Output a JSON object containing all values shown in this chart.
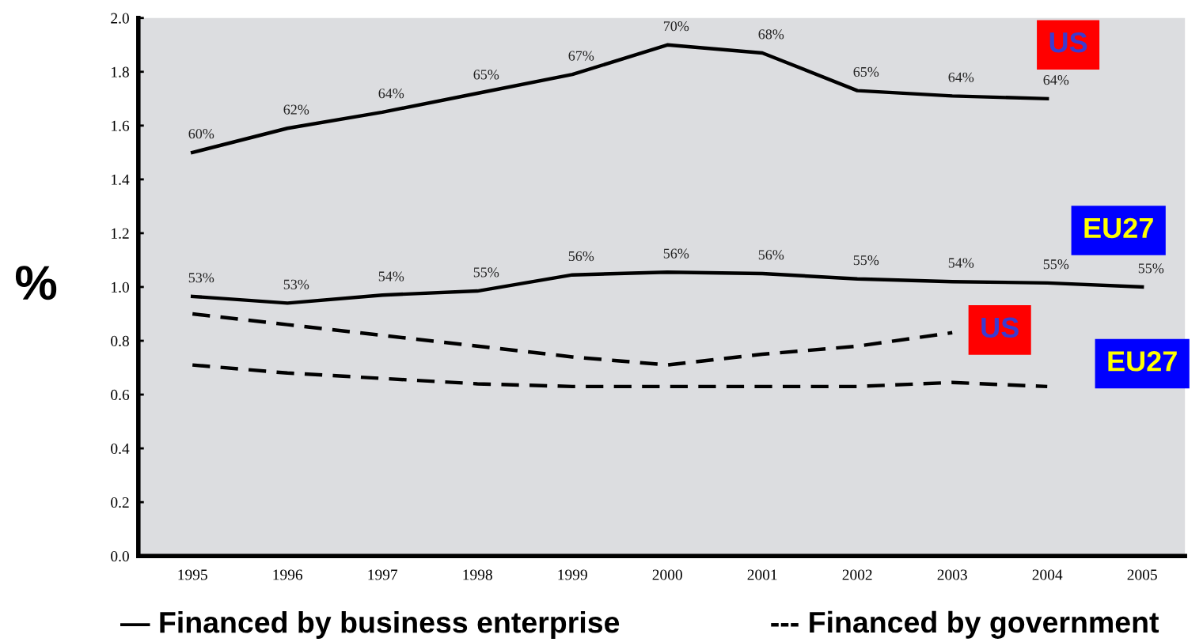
{
  "chart_data": {
    "type": "line",
    "ylabel": "%",
    "x": [
      1995,
      1996,
      1997,
      1998,
      1999,
      2000,
      2001,
      2002,
      2003,
      2004,
      2005
    ],
    "series": [
      {
        "name": "US",
        "color": "#000000",
        "line_style": "solid",
        "values": [
          1.5,
          1.59,
          1.65,
          1.72,
          1.79,
          1.9,
          1.87,
          1.73,
          1.71,
          1.7,
          null
        ]
      },
      {
        "name": "EU27",
        "color": "#000000",
        "line_style": "solid",
        "values": [
          0.965,
          0.94,
          0.97,
          0.985,
          1.045,
          1.055,
          1.05,
          1.03,
          1.02,
          1.015,
          1.0
        ]
      },
      {
        "name": "US",
        "color": "#000000",
        "line_style": "dashed",
        "values": [
          0.9,
          0.86,
          0.82,
          0.78,
          0.74,
          0.71,
          0.75,
          0.78,
          0.83,
          null,
          null
        ]
      },
      {
        "name": "EU27",
        "color": "#000000",
        "line_style": "dashed",
        "values": [
          0.71,
          0.68,
          0.66,
          0.64,
          0.63,
          0.63,
          0.63,
          0.63,
          0.645,
          0.63,
          null
        ]
      }
    ],
    "xlim": [
      1994.43,
      2005.45
    ],
    "xticks": [
      1995,
      1996,
      1997,
      1998,
      1999,
      2000,
      2001,
      2002,
      2003,
      2004,
      2005
    ],
    "ylim": [
      0,
      2.0
    ],
    "yticks": [
      {
        "value": 0,
        "label": "0.0"
      },
      {
        "value": 0.2,
        "label": "0.2"
      },
      {
        "value": 0.4,
        "label": "0.4"
      },
      {
        "value": 0.6,
        "label": "0.6"
      },
      {
        "value": 0.8,
        "label": "0.8"
      },
      {
        "value": 1.0,
        "label": "1.0"
      },
      {
        "value": 1.2,
        "label": "1.2"
      },
      {
        "value": 1.4,
        "label": "1.4"
      },
      {
        "value": 1.6,
        "label": "1.6"
      },
      {
        "value": 1.8,
        "label": "1.8"
      },
      {
        "value": 2.0,
        "label": "2.0"
      }
    ],
    "grid": false,
    "legend": false,
    "marker": "none",
    "annotations": [
      {
        "text": "60%",
        "x": 1995,
        "y": 1.5
      },
      {
        "text": "62%",
        "x": 1996,
        "y": 1.59
      },
      {
        "text": "64%",
        "x": 1997,
        "y": 1.65
      },
      {
        "text": "65%",
        "x": 1998,
        "y": 1.72
      },
      {
        "text": "67%",
        "x": 1999,
        "y": 1.79
      },
      {
        "text": "70%",
        "x": 2000,
        "y": 1.9
      },
      {
        "text": "68%",
        "x": 2001,
        "y": 1.87
      },
      {
        "text": "65%",
        "x": 2002,
        "y": 1.73
      },
      {
        "text": "64%",
        "x": 2003,
        "y": 1.71
      },
      {
        "text": "64%",
        "x": 2004,
        "y": 1.7
      },
      {
        "text": "53%",
        "x": 1995,
        "y": 0.965
      },
      {
        "text": "53%",
        "x": 1996,
        "y": 0.94
      },
      {
        "text": "54%",
        "x": 1997,
        "y": 0.97
      },
      {
        "text": "55%",
        "x": 1998,
        "y": 0.985
      },
      {
        "text": "56%",
        "x": 1999,
        "y": 1.045
      },
      {
        "text": "56%",
        "x": 2000,
        "y": 1.055
      },
      {
        "text": "56%",
        "x": 2001,
        "y": 1.05
      },
      {
        "text": "55%",
        "x": 2002,
        "y": 1.03
      },
      {
        "text": "54%",
        "x": 2003,
        "y": 1.02
      },
      {
        "text": "55%",
        "x": 2004,
        "y": 1.015
      },
      {
        "text": "55%",
        "x": 2005,
        "y": 1.0
      },
      "— Financed by business enterprise",
      "--- Financed by government"
    ]
  }
}
